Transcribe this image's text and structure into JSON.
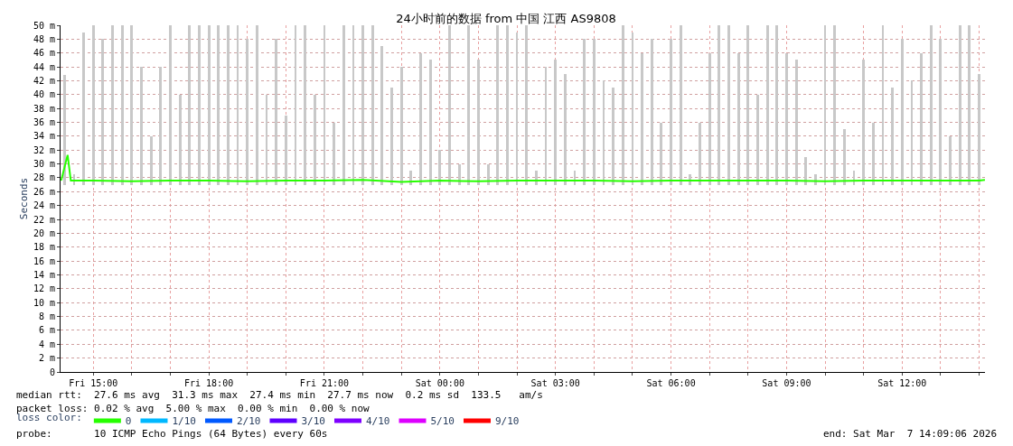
{
  "chart_data": {
    "type": "line",
    "title": "24小时前的数据 from 中国 江西 AS9808",
    "ylabel": "Seconds",
    "legend_title": "loss color:",
    "legend": "bottom",
    "grid": true,
    "xlim": [
      "2026-03-06T14:09",
      "2026-03-07T14:09:06"
    ],
    "xticks": [
      {
        "value": "2026-03-06T15:00",
        "label": "Fri 15:00"
      },
      {
        "value": "2026-03-06T16:00",
        "label": null
      },
      {
        "value": "2026-03-06T17:00",
        "label": null
      },
      {
        "value": "2026-03-06T18:00",
        "label": "Fri 18:00"
      },
      {
        "value": "2026-03-06T19:00",
        "label": null
      },
      {
        "value": "2026-03-06T20:00",
        "label": null
      },
      {
        "value": "2026-03-06T21:00",
        "label": "Fri 21:00"
      },
      {
        "value": "2026-03-06T22:00",
        "label": null
      },
      {
        "value": "2026-03-06T23:00",
        "label": null
      },
      {
        "value": "2026-03-07T00:00",
        "label": "Sat 00:00"
      },
      {
        "value": "2026-03-07T01:00",
        "label": null
      },
      {
        "value": "2026-03-07T02:00",
        "label": null
      },
      {
        "value": "2026-03-07T03:00",
        "label": "Sat 03:00"
      },
      {
        "value": "2026-03-07T04:00",
        "label": null
      },
      {
        "value": "2026-03-07T05:00",
        "label": null
      },
      {
        "value": "2026-03-07T06:00",
        "label": "Sat 06:00"
      },
      {
        "value": "2026-03-07T07:00",
        "label": null
      },
      {
        "value": "2026-03-07T08:00",
        "label": null
      },
      {
        "value": "2026-03-07T09:00",
        "label": "Sat 09:00"
      },
      {
        "value": "2026-03-07T10:00",
        "label": null
      },
      {
        "value": "2026-03-07T11:00",
        "label": null
      },
      {
        "value": "2026-03-07T12:00",
        "label": "Sat 12:00"
      },
      {
        "value": "2026-03-07T13:00",
        "label": null
      },
      {
        "value": "2026-03-07T14:00",
        "label": null
      }
    ],
    "ylim": [
      0,
      50
    ],
    "yticks": [
      0,
      {
        "value": 2,
        "label": "2 m"
      },
      {
        "value": 4,
        "label": "4 m"
      },
      {
        "value": 6,
        "label": "6 m"
      },
      {
        "value": 8,
        "label": "8 m"
      },
      {
        "value": 10,
        "label": "10 m"
      },
      {
        "value": 12,
        "label": "12 m"
      },
      {
        "value": 14,
        "label": "14 m"
      },
      {
        "value": 16,
        "label": "16 m"
      },
      {
        "value": 18,
        "label": "18 m"
      },
      {
        "value": 20,
        "label": "20 m"
      },
      {
        "value": 22,
        "label": "22 m"
      },
      {
        "value": 24,
        "label": "24 m"
      },
      {
        "value": 26,
        "label": "26 m"
      },
      {
        "value": 28,
        "label": "28 m"
      },
      {
        "value": 30,
        "label": "30 m"
      },
      {
        "value": 32,
        "label": "32 m"
      },
      {
        "value": 34,
        "label": "34 m"
      },
      {
        "value": 36,
        "label": "36 m"
      },
      {
        "value": 38,
        "label": "38 m"
      },
      {
        "value": 40,
        "label": "40 m"
      },
      {
        "value": 42,
        "label": "42 m"
      },
      {
        "value": 44,
        "label": "44 m"
      },
      {
        "value": 46,
        "label": "46 m"
      },
      {
        "value": 48,
        "label": "48 m"
      },
      {
        "value": 50,
        "label": "50 m"
      }
    ],
    "annotations": [
      "median rtt:  27.6 ms avg  31.3 ms max  27.4 ms min  27.7 ms now  0.2 ms sd  133.5   am/s",
      "packet loss: 0.02 % avg  5.00 % max  0.00 % min  0.00 % now",
      "probe:       10 ICMP Echo Pings (64 Bytes) every 60s",
      "end: Sat Mar  7 14:09:06 2026"
    ],
    "series": [
      {
        "type": "bar",
        "color": "#c8c8c8",
        "x": [
          "2026-03-06T14:15",
          "2026-03-06T14:30",
          "2026-03-06T14:45",
          "2026-03-06T15:00",
          "2026-03-06T15:15",
          "2026-03-06T15:30",
          "2026-03-06T15:45",
          "2026-03-06T16:00",
          "2026-03-06T16:15",
          "2026-03-06T16:30",
          "2026-03-06T16:45",
          "2026-03-06T17:00",
          "2026-03-06T17:15",
          "2026-03-06T17:30",
          "2026-03-06T17:45",
          "2026-03-06T18:00",
          "2026-03-06T18:15",
          "2026-03-06T18:30",
          "2026-03-06T18:45",
          "2026-03-06T19:00",
          "2026-03-06T19:15",
          "2026-03-06T19:30",
          "2026-03-06T19:45",
          "2026-03-06T20:00",
          "2026-03-06T20:15",
          "2026-03-06T20:30",
          "2026-03-06T20:45",
          "2026-03-06T21:00",
          "2026-03-06T21:15",
          "2026-03-06T21:30",
          "2026-03-06T21:45",
          "2026-03-06T22:00",
          "2026-03-06T22:15",
          "2026-03-06T22:30",
          "2026-03-06T22:45",
          "2026-03-06T23:00",
          "2026-03-06T23:15",
          "2026-03-06T23:30",
          "2026-03-06T23:45",
          "2026-03-07T00:00",
          "2026-03-07T00:15",
          "2026-03-07T00:30",
          "2026-03-07T00:45",
          "2026-03-07T01:00",
          "2026-03-07T01:15",
          "2026-03-07T01:30",
          "2026-03-07T01:45",
          "2026-03-07T02:00",
          "2026-03-07T02:15",
          "2026-03-07T02:30",
          "2026-03-07T02:45",
          "2026-03-07T03:00",
          "2026-03-07T03:15",
          "2026-03-07T03:30",
          "2026-03-07T03:45",
          "2026-03-07T04:00",
          "2026-03-07T04:15",
          "2026-03-07T04:30",
          "2026-03-07T04:45",
          "2026-03-07T05:00",
          "2026-03-07T05:15",
          "2026-03-07T05:30",
          "2026-03-07T05:45",
          "2026-03-07T06:00",
          "2026-03-07T06:15",
          "2026-03-07T06:30",
          "2026-03-07T06:45",
          "2026-03-07T07:00",
          "2026-03-07T07:15",
          "2026-03-07T07:30",
          "2026-03-07T07:45",
          "2026-03-07T08:00",
          "2026-03-07T08:15",
          "2026-03-07T08:30",
          "2026-03-07T08:45",
          "2026-03-07T09:00",
          "2026-03-07T09:15",
          "2026-03-07T09:30",
          "2026-03-07T09:45",
          "2026-03-07T10:00",
          "2026-03-07T10:15",
          "2026-03-07T10:30",
          "2026-03-07T10:45",
          "2026-03-07T11:00",
          "2026-03-07T11:15",
          "2026-03-07T11:30",
          "2026-03-07T11:45",
          "2026-03-07T12:00",
          "2026-03-07T12:15",
          "2026-03-07T12:30",
          "2026-03-07T12:45",
          "2026-03-07T13:00",
          "2026-03-07T13:15",
          "2026-03-07T13:30",
          "2026-03-07T13:45",
          "2026-03-07T14:00"
        ],
        "base": [
          27,
          27,
          27,
          27,
          27,
          27,
          27,
          27,
          27,
          27,
          27,
          27,
          27,
          27,
          27,
          27,
          27,
          27,
          27,
          27,
          27,
          27,
          27,
          27,
          27,
          27,
          27,
          27,
          27,
          27,
          27,
          27,
          27,
          27,
          27,
          27,
          27,
          27,
          27,
          27,
          27,
          27,
          27,
          27,
          27,
          27,
          27,
          27,
          27,
          27,
          27,
          27,
          27,
          27,
          27,
          27,
          27,
          27,
          27,
          27,
          27,
          27,
          27,
          27,
          27,
          27,
          27,
          27,
          27,
          27,
          27,
          27,
          27,
          27,
          27,
          27,
          27,
          27,
          27,
          27,
          27,
          27,
          27,
          27,
          27,
          27,
          27,
          27,
          27,
          27,
          27,
          27,
          27,
          27,
          27,
          27
        ],
        "values": [
          15.8,
          1.5,
          22,
          23,
          21,
          23,
          23,
          23,
          17,
          7,
          17,
          23,
          13,
          23,
          23,
          23,
          23,
          23,
          23,
          21,
          23,
          13,
          21,
          10,
          23,
          23,
          13,
          23,
          9,
          23,
          23,
          23,
          23,
          20,
          14,
          17,
          2,
          19,
          18,
          5,
          23,
          3,
          23,
          18,
          3,
          23,
          23,
          22,
          23,
          2,
          17,
          18,
          16,
          2,
          21,
          21,
          15,
          14,
          23,
          22,
          19,
          21,
          9,
          21,
          23,
          1.5,
          9,
          19,
          23,
          23,
          19,
          23,
          13,
          23,
          23,
          19,
          18,
          4,
          1.5,
          23,
          23,
          8,
          2,
          18,
          9,
          23,
          14,
          21,
          15,
          19,
          23,
          21,
          7,
          23,
          23,
          16
        ]
      },
      {
        "name": "0",
        "color": "#26ff00",
        "x": [
          "2026-03-06T14:10",
          "2026-03-06T14:20",
          "2026-03-06T14:25",
          "2026-03-06T15:00",
          "2026-03-06T16:00",
          "2026-03-06T17:00",
          "2026-03-06T18:00",
          "2026-03-06T19:00",
          "2026-03-06T20:00",
          "2026-03-06T21:00",
          "2026-03-06T22:00",
          "2026-03-06T23:00",
          "2026-03-07T00:00",
          "2026-03-07T01:00",
          "2026-03-07T02:00",
          "2026-03-07T03:00",
          "2026-03-07T04:00",
          "2026-03-07T05:00",
          "2026-03-07T06:00",
          "2026-03-07T07:00",
          "2026-03-07T08:00",
          "2026-03-07T09:00",
          "2026-03-07T10:00",
          "2026-03-07T11:00",
          "2026-03-07T12:00",
          "2026-03-07T13:00",
          "2026-03-07T14:00",
          "2026-03-07T14:09"
        ],
        "values": [
          27.6,
          31.3,
          27.6,
          27.6,
          27.5,
          27.6,
          27.6,
          27.5,
          27.6,
          27.6,
          27.7,
          27.4,
          27.6,
          27.5,
          27.6,
          27.6,
          27.6,
          27.5,
          27.6,
          27.6,
          27.6,
          27.6,
          27.5,
          27.6,
          27.6,
          27.6,
          27.6,
          27.7
        ]
      },
      {
        "name": "1/10",
        "color": "#00b8ff"
      },
      {
        "name": "2/10",
        "color": "#0059ff"
      },
      {
        "name": "3/10",
        "color": "#5e00ff"
      },
      {
        "name": "4/10",
        "color": "#7e00ff"
      },
      {
        "name": "5/10",
        "color": "#dd00ff"
      },
      {
        "name": "9/10",
        "color": "#ff0000"
      }
    ]
  }
}
